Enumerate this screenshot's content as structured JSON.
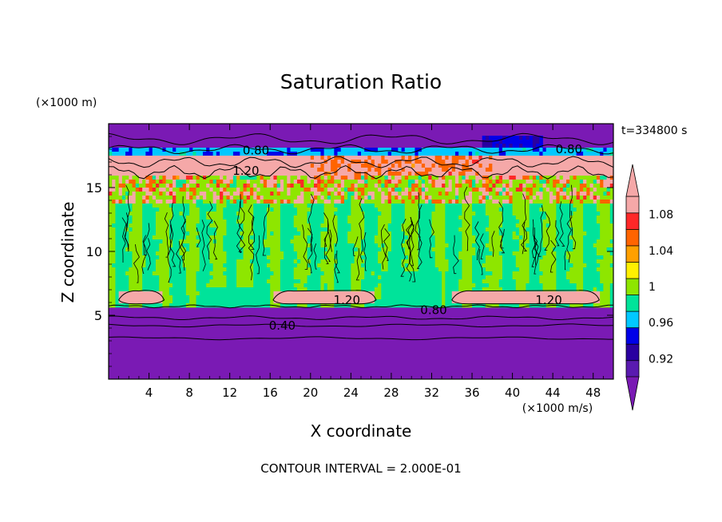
{
  "chart_data": {
    "type": "heatmap",
    "title": "Saturation Ratio",
    "xlabel": "X coordinate",
    "ylabel": "Z coordinate",
    "x_unit": "(×1000 m/s)",
    "y_unit": "(×1000 m)",
    "time_label": "t=334800 s",
    "footer": "CONTOUR INTERVAL = 2.000E-01",
    "xlim": [
      0,
      50
    ],
    "ylim": [
      0,
      20
    ],
    "x_ticks": [
      4,
      8,
      12,
      16,
      20,
      24,
      28,
      32,
      36,
      40,
      44,
      48
    ],
    "y_ticks": [
      5,
      10,
      15
    ],
    "colorbar": {
      "boundaries": [
        0.9,
        0.92,
        0.94,
        0.96,
        0.98,
        1.0,
        1.02,
        1.04,
        1.06,
        1.08,
        1.1
      ],
      "labels": [
        "0.92",
        "0.96",
        "1",
        "1.04",
        "1.08"
      ],
      "label_values": [
        0.92,
        0.96,
        1.0,
        1.04,
        1.08
      ],
      "colors": [
        "#5a1ab0",
        "#2a00a0",
        "#0000e8",
        "#00c8ff",
        "#00e39a",
        "#8ee600",
        "#fff000",
        "#ffa000",
        "#ff6400",
        "#ff2828",
        "#f5a8a8"
      ],
      "under_color": "#7a1ab4",
      "over_color": "#f5a8a8"
    },
    "contour_labels": [
      {
        "text": "0.80",
        "x": 14.6,
        "y": 17.9
      },
      {
        "text": "0.80",
        "x": 45.6,
        "y": 18.0
      },
      {
        "text": "1.20",
        "x": 13.6,
        "y": 16.3
      },
      {
        "text": "1.20",
        "x": 23.6,
        "y": 6.2
      },
      {
        "text": "1.20",
        "x": 43.6,
        "y": 6.2
      },
      {
        "text": "0.80",
        "x": 32.2,
        "y": 5.4
      },
      {
        "text": "0.40",
        "x": 17.2,
        "y": 4.2
      }
    ]
  }
}
